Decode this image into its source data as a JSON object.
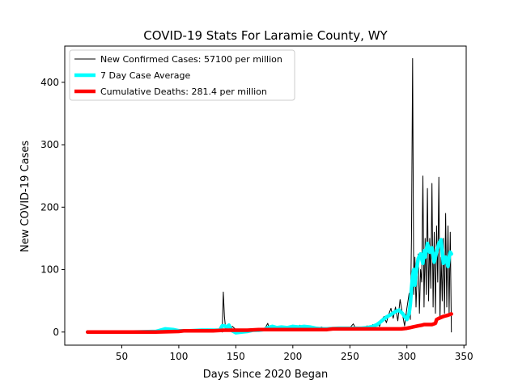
{
  "chart_data": {
    "type": "line",
    "title": "COVID-19 Stats For Laramie County, WY",
    "xlabel": "Days Since 2020 Began",
    "ylabel": "New COVID-19 Cases",
    "xlim": [
      0,
      352
    ],
    "ylim": [
      -21,
      458
    ],
    "xticks": [
      50,
      100,
      150,
      200,
      250,
      300,
      350
    ],
    "yticks": [
      0,
      100,
      200,
      300,
      400
    ],
    "grid": false,
    "legend_position": "top-left",
    "series": [
      {
        "name": "New Confirmed Cases: 57100 per million",
        "style": "thin-line",
        "color": "#000000",
        "points": [
          [
            20,
            0
          ],
          [
            40,
            0
          ],
          [
            60,
            0
          ],
          [
            80,
            0
          ],
          [
            85,
            2
          ],
          [
            88,
            7
          ],
          [
            90,
            3
          ],
          [
            92,
            5
          ],
          [
            95,
            2
          ],
          [
            98,
            4
          ],
          [
            100,
            1
          ],
          [
            105,
            3
          ],
          [
            110,
            2
          ],
          [
            115,
            4
          ],
          [
            120,
            3
          ],
          [
            125,
            5
          ],
          [
            130,
            2
          ],
          [
            134,
            3
          ],
          [
            137,
            5
          ],
          [
            138,
            0
          ],
          [
            139,
            64
          ],
          [
            140,
            25
          ],
          [
            141,
            6
          ],
          [
            143,
            12
          ],
          [
            145,
            2
          ],
          [
            147,
            9
          ],
          [
            150,
            4
          ],
          [
            155,
            3
          ],
          [
            160,
            2
          ],
          [
            165,
            4
          ],
          [
            170,
            5
          ],
          [
            175,
            4
          ],
          [
            178,
            14
          ],
          [
            180,
            2
          ],
          [
            183,
            10
          ],
          [
            186,
            6
          ],
          [
            190,
            3
          ],
          [
            193,
            8
          ],
          [
            196,
            5
          ],
          [
            200,
            10
          ],
          [
            203,
            4
          ],
          [
            206,
            11
          ],
          [
            209,
            6
          ],
          [
            212,
            9
          ],
          [
            215,
            5
          ],
          [
            218,
            7
          ],
          [
            221,
            4
          ],
          [
            225,
            8
          ],
          [
            230,
            5
          ],
          [
            235,
            7
          ],
          [
            240,
            6
          ],
          [
            245,
            5
          ],
          [
            250,
            7
          ],
          [
            253,
            13
          ],
          [
            255,
            6
          ],
          [
            258,
            4
          ],
          [
            260,
            8
          ],
          [
            263,
            5
          ],
          [
            265,
            10
          ],
          [
            268,
            3
          ],
          [
            270,
            12
          ],
          [
            272,
            6
          ],
          [
            274,
            15
          ],
          [
            276,
            9
          ],
          [
            278,
            20
          ],
          [
            280,
            25
          ],
          [
            282,
            15
          ],
          [
            284,
            28
          ],
          [
            286,
            38
          ],
          [
            288,
            22
          ],
          [
            290,
            40
          ],
          [
            292,
            18
          ],
          [
            294,
            52
          ],
          [
            296,
            30
          ],
          [
            298,
            10
          ],
          [
            300,
            38
          ],
          [
            302,
            62
          ],
          [
            303,
            20
          ],
          [
            304,
            150
          ],
          [
            305,
            438
          ],
          [
            306,
            60
          ],
          [
            307,
            120
          ],
          [
            308,
            40
          ],
          [
            309,
            90
          ],
          [
            310,
            125
          ],
          [
            311,
            30
          ],
          [
            312,
            100
          ],
          [
            313,
            80
          ],
          [
            314,
            250
          ],
          [
            315,
            40
          ],
          [
            316,
            150
          ],
          [
            317,
            60
          ],
          [
            318,
            230
          ],
          [
            319,
            50
          ],
          [
            320,
            150
          ],
          [
            321,
            70
          ],
          [
            322,
            238
          ],
          [
            323,
            40
          ],
          [
            324,
            160
          ],
          [
            325,
            30
          ],
          [
            326,
            170
          ],
          [
            327,
            80
          ],
          [
            328,
            248
          ],
          [
            329,
            20
          ],
          [
            330,
            120
          ],
          [
            331,
            50
          ],
          [
            332,
            150
          ],
          [
            333,
            30
          ],
          [
            334,
            190
          ],
          [
            335,
            40
          ],
          [
            336,
            170
          ],
          [
            337,
            30
          ],
          [
            338,
            160
          ],
          [
            339,
            0
          ]
        ]
      },
      {
        "name": "7 Day Case Average",
        "style": "thick-line",
        "color": "#00ffff",
        "points": [
          [
            20,
            0
          ],
          [
            60,
            0
          ],
          [
            80,
            1
          ],
          [
            88,
            5
          ],
          [
            95,
            4
          ],
          [
            100,
            2
          ],
          [
            110,
            2
          ],
          [
            120,
            3
          ],
          [
            130,
            3
          ],
          [
            136,
            3
          ],
          [
            138,
            10
          ],
          [
            140,
            10
          ],
          [
            142,
            8
          ],
          [
            144,
            11
          ],
          [
            146,
            3
          ],
          [
            150,
            -1
          ],
          [
            155,
            0
          ],
          [
            160,
            1
          ],
          [
            165,
            3
          ],
          [
            170,
            3
          ],
          [
            175,
            4
          ],
          [
            178,
            7
          ],
          [
            182,
            9
          ],
          [
            186,
            7
          ],
          [
            190,
            8
          ],
          [
            195,
            7
          ],
          [
            200,
            9
          ],
          [
            205,
            8
          ],
          [
            210,
            9
          ],
          [
            215,
            8
          ],
          [
            220,
            6
          ],
          [
            225,
            5
          ],
          [
            230,
            5
          ],
          [
            240,
            6
          ],
          [
            250,
            6
          ],
          [
            255,
            6
          ],
          [
            260,
            6
          ],
          [
            265,
            7
          ],
          [
            270,
            9
          ],
          [
            274,
            12
          ],
          [
            278,
            18
          ],
          [
            282,
            24
          ],
          [
            286,
            28
          ],
          [
            290,
            33
          ],
          [
            293,
            35
          ],
          [
            296,
            30
          ],
          [
            298,
            25
          ],
          [
            300,
            20
          ],
          [
            302,
            30
          ],
          [
            303,
            45
          ],
          [
            304,
            70
          ],
          [
            305,
            90
          ],
          [
            306,
            100
          ],
          [
            307,
            75
          ],
          [
            308,
            95
          ],
          [
            310,
            118
          ],
          [
            312,
            125
          ],
          [
            314,
            110
          ],
          [
            315,
            130
          ],
          [
            316,
            120
          ],
          [
            318,
            142
          ],
          [
            320,
            128
          ],
          [
            322,
            135
          ],
          [
            324,
            112
          ],
          [
            326,
            128
          ],
          [
            328,
            142
          ],
          [
            330,
            148
          ],
          [
            332,
            110
          ],
          [
            334,
            120
          ],
          [
            336,
            105
          ],
          [
            337,
            120
          ],
          [
            338,
            128
          ],
          [
            339,
            125
          ]
        ]
      },
      {
        "name": "Cumulative Deaths: 281.4 per million",
        "style": "thick-line",
        "color": "#ff0000",
        "points": [
          [
            20,
            0
          ],
          [
            80,
            0
          ],
          [
            100,
            1
          ],
          [
            105,
            2
          ],
          [
            130,
            2
          ],
          [
            140,
            3
          ],
          [
            160,
            3
          ],
          [
            170,
            4
          ],
          [
            200,
            4
          ],
          [
            230,
            4
          ],
          [
            235,
            5
          ],
          [
            260,
            5
          ],
          [
            280,
            5
          ],
          [
            295,
            5
          ],
          [
            300,
            6
          ],
          [
            305,
            8
          ],
          [
            310,
            10
          ],
          [
            313,
            11
          ],
          [
            315,
            12
          ],
          [
            322,
            12
          ],
          [
            325,
            14
          ],
          [
            326,
            20
          ],
          [
            328,
            22
          ],
          [
            332,
            25
          ],
          [
            336,
            27
          ],
          [
            339,
            29
          ]
        ]
      }
    ]
  }
}
